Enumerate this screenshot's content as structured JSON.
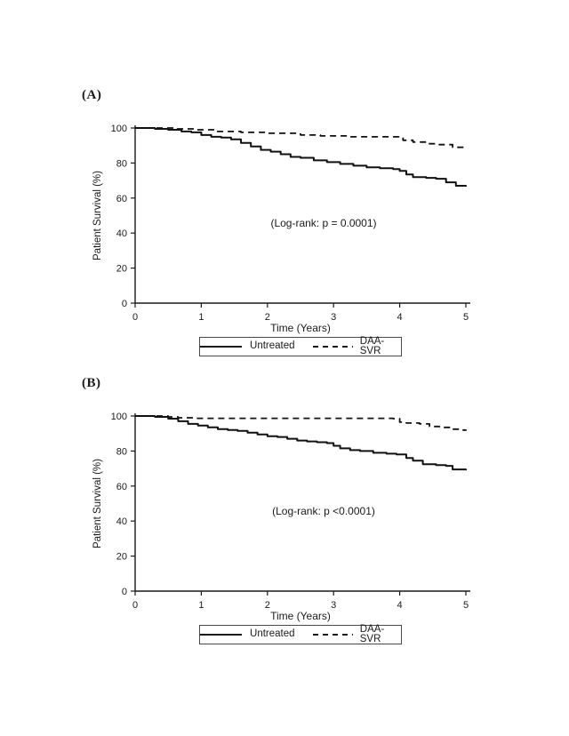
{
  "figure": {
    "background": "#ffffff",
    "ink": "#1a1a1a"
  },
  "chart_data": [
    {
      "type": "line",
      "subtype": "kaplan-meier-step",
      "panel_label": "(A)",
      "xlabel": "Time (Years)",
      "ylabel": "Patient Survival (%)",
      "annotation": "(Log-rank: p = 0.0001)",
      "xlim": [
        0,
        5
      ],
      "ylim": [
        0,
        100
      ],
      "xticks": [
        0,
        1,
        2,
        3,
        4,
        5
      ],
      "yticks": [
        100,
        80,
        60,
        40,
        20,
        0
      ],
      "grid": false,
      "legend_position": "bottom-center-boxed",
      "series": [
        {
          "name": "Untreated",
          "line_style": "solid",
          "x": [
            0,
            0.3,
            0.5,
            0.7,
            0.85,
            1.0,
            1.15,
            1.3,
            1.45,
            1.6,
            1.75,
            1.9,
            2.05,
            2.2,
            2.35,
            2.5,
            2.7,
            2.9,
            3.1,
            3.3,
            3.5,
            3.7,
            3.9,
            4.0,
            4.1,
            4.2,
            4.4,
            4.55,
            4.7,
            4.85,
            5.0
          ],
          "y": [
            100,
            99.5,
            99,
            98,
            97.5,
            96,
            95,
            94.5,
            93.5,
            91.5,
            89.5,
            87.5,
            86.5,
            85,
            83.5,
            83,
            81.5,
            80.5,
            79.5,
            78.5,
            77.5,
            77,
            76.5,
            75.5,
            73.5,
            72,
            71.5,
            71,
            69,
            67,
            66.5
          ]
        },
        {
          "name": "DAA-SVR",
          "line_style": "dashed",
          "x": [
            0,
            0.6,
            0.9,
            1.2,
            1.6,
            2.0,
            2.5,
            2.8,
            3.2,
            3.95,
            4.05,
            4.2,
            4.4,
            4.6,
            4.8,
            5.0
          ],
          "y": [
            100,
            99.5,
            99,
            98,
            97.5,
            97,
            96,
            95.5,
            95,
            95,
            93,
            92,
            91,
            90.5,
            89,
            88
          ]
        }
      ]
    },
    {
      "type": "line",
      "subtype": "kaplan-meier-step",
      "panel_label": "(B)",
      "xlabel": "Time (Years)",
      "ylabel": "Patient Survival (%)",
      "annotation": "(Log-rank: p <0.0001)",
      "xlim": [
        0,
        5
      ],
      "ylim": [
        0,
        100
      ],
      "xticks": [
        0,
        1,
        2,
        3,
        4,
        5
      ],
      "yticks": [
        100,
        80,
        60,
        40,
        20,
        0
      ],
      "grid": false,
      "legend_position": "bottom-center-boxed",
      "series": [
        {
          "name": "Untreated",
          "line_style": "solid",
          "x": [
            0,
            0.3,
            0.5,
            0.65,
            0.8,
            0.95,
            1.1,
            1.25,
            1.4,
            1.55,
            1.7,
            1.85,
            2.0,
            2.15,
            2.3,
            2.45,
            2.6,
            2.75,
            2.9,
            3.0,
            3.1,
            3.25,
            3.4,
            3.6,
            3.8,
            3.95,
            4.1,
            4.2,
            4.35,
            4.55,
            4.7,
            4.8,
            5.0
          ],
          "y": [
            100,
            99.5,
            98.5,
            97,
            95.5,
            94.5,
            93.5,
            92.5,
            92,
            91.5,
            90.5,
            89.5,
            88.5,
            88,
            87,
            86,
            85.5,
            85,
            84.5,
            83,
            81.5,
            80.5,
            80,
            79,
            78.5,
            78,
            76,
            74.5,
            72.5,
            72,
            71.5,
            69.5,
            69
          ]
        },
        {
          "name": "DAA-SVR",
          "line_style": "dashed",
          "x": [
            0,
            0.5,
            0.65,
            0.9,
            3.9,
            4.0,
            4.1,
            4.3,
            4.45,
            4.6,
            4.8,
            4.9,
            5.0
          ],
          "y": [
            100,
            99.5,
            99,
            98.7,
            98.5,
            96.5,
            96,
            95.5,
            94,
            93.5,
            92.5,
            92,
            91.5
          ]
        }
      ]
    }
  ]
}
